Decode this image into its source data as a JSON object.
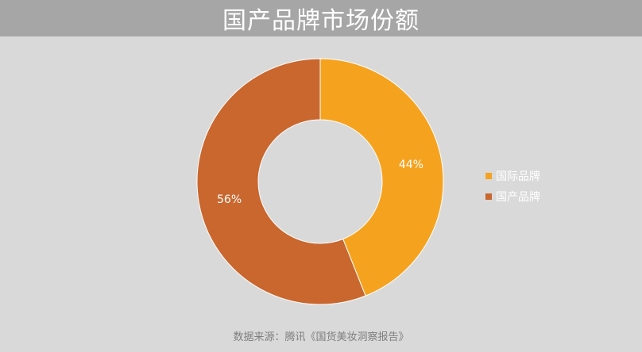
{
  "chart_data": {
    "type": "pie",
    "donut": true,
    "title": "国产品牌市场份额",
    "categories": [
      "国际品牌",
      "国产品牌"
    ],
    "values": [
      44,
      56
    ],
    "data_labels": [
      "44%",
      "56%"
    ],
    "colors": [
      "#f5a31f",
      "#c9672e"
    ],
    "legend_position": "right"
  },
  "footer": {
    "source": "数据来源：腾讯《国货美妆洞察报告》"
  },
  "colors": {
    "background": "#d9d9d9",
    "title_bar": "#a6a6a6"
  }
}
